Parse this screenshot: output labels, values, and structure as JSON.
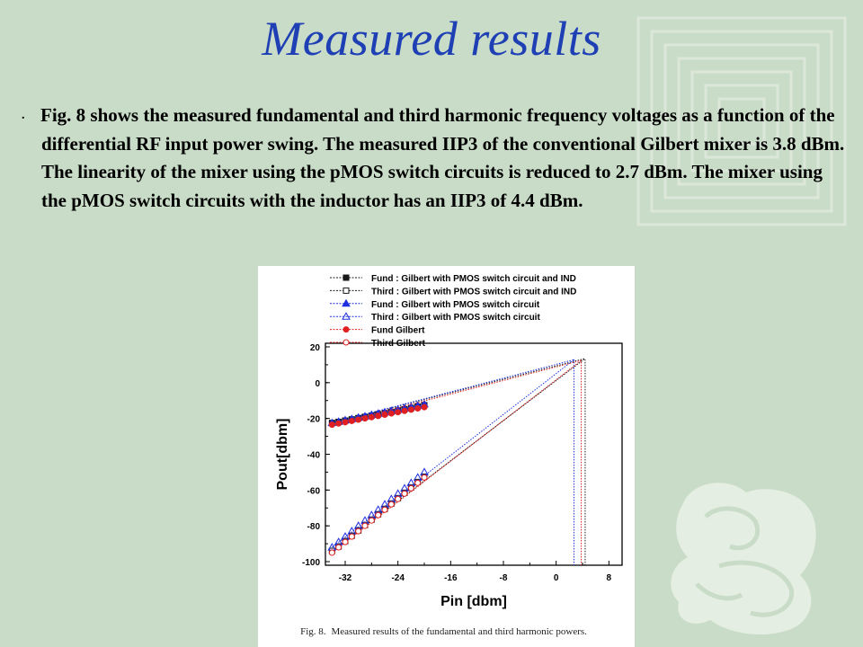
{
  "slide": {
    "title": "Measured results",
    "bullet": ".",
    "paragraph": "Fig. 8 shows the measured fundamental and third harmonic frequency voltages as a function of the differential RF input power swing. The measured IIP3 of the conventional Gilbert mixer is 3.8 dBm. The linearity of the mixer using the pMOS switch circuits is reduced to 2.7 dBm. The mixer using the pMOS switch circuits with the inductor has an IIP3 of 4.4 dBm."
  },
  "figure": {
    "caption_label": "Fig. 8.",
    "caption_text": "Measured results of the fundamental and third harmonic powers."
  },
  "colors": {
    "background": "#c9dcc8",
    "title": "#1f3fb4",
    "series_black": "#1a1a1a",
    "series_blue": "#1e2ee0",
    "series_red": "#e02020"
  },
  "chart_data": {
    "type": "line",
    "title": "",
    "xlabel": "Pin [dbm]",
    "ylabel": "Pout[dbm]",
    "xlim": [
      -35,
      10
    ],
    "ylim": [
      -102,
      22
    ],
    "xticks": [
      -32,
      -24,
      -16,
      -8,
      0,
      8
    ],
    "yticks": [
      20,
      0,
      -20,
      -40,
      -60,
      -80,
      -100
    ],
    "grid": false,
    "legend_position": "top",
    "series": [
      {
        "name": "Fund : Gilbert with PMOS switch circuit and IND",
        "color": "#1a1a1a",
        "marker": "square-filled",
        "x": [
          -34,
          -33,
          -32,
          -31,
          -30,
          -29,
          -28,
          -27,
          -26,
          -25,
          -24,
          -23,
          -22,
          -21,
          -20
        ],
        "y": [
          -22.5,
          -21.9,
          -21.2,
          -20.5,
          -19.8,
          -19.1,
          -18.4,
          -17.7,
          -17.0,
          -16.3,
          -15.6,
          -14.9,
          -14.2,
          -13.4,
          -12.6
        ],
        "extrapolation": {
          "from": [
            -34,
            -22.5
          ],
          "to": [
            4.4,
            13.5
          ]
        }
      },
      {
        "name": "Third : Gilbert with PMOS switch circuit and IND",
        "color": "#1a1a1a",
        "marker": "square-open",
        "x": [
          -34,
          -33,
          -32,
          -31,
          -30,
          -29,
          -28,
          -27,
          -26,
          -25,
          -24,
          -23,
          -22,
          -21,
          -20
        ],
        "y": [
          -94,
          -91.5,
          -88.5,
          -85.5,
          -82.5,
          -79.5,
          -76.5,
          -73.5,
          -70.5,
          -67.5,
          -64.5,
          -61.5,
          -58.5,
          -55.5,
          -52.5
        ],
        "extrapolation": {
          "from": [
            -34,
            -94
          ],
          "to": [
            4.4,
            13.5
          ]
        }
      },
      {
        "name": "Fund : Gilbert with PMOS switch circuit",
        "color": "#1e2ee0",
        "marker": "triangle-filled",
        "x": [
          -34,
          -33,
          -32,
          -31,
          -30,
          -29,
          -28,
          -27,
          -26,
          -25,
          -24,
          -23,
          -22,
          -21,
          -20
        ],
        "y": [
          -22.5,
          -21.8,
          -21.0,
          -20.3,
          -19.5,
          -18.8,
          -18.0,
          -17.3,
          -16.5,
          -15.8,
          -15.0,
          -14.3,
          -13.5,
          -12.8,
          -12.0
        ],
        "extrapolation": {
          "from": [
            -34,
            -22.5
          ],
          "to": [
            2.7,
            12.8
          ]
        }
      },
      {
        "name": "Third : Gilbert with PMOS switch circuit",
        "color": "#1e2ee0",
        "marker": "triangle-open",
        "x": [
          -34,
          -33,
          -32,
          -31,
          -30,
          -29,
          -28,
          -27,
          -26,
          -25,
          -24,
          -23,
          -22,
          -21,
          -20
        ],
        "y": [
          -92,
          -89,
          -86,
          -83,
          -80,
          -77,
          -74,
          -71,
          -68,
          -65,
          -62,
          -59,
          -56,
          -53,
          -50
        ],
        "extrapolation": {
          "from": [
            -34,
            -92
          ],
          "to": [
            2.7,
            12.8
          ]
        }
      },
      {
        "name": "Fund Gilbert",
        "color": "#e02020",
        "marker": "circle-filled",
        "x": [
          -34,
          -33,
          -32,
          -31,
          -30,
          -29,
          -28,
          -27,
          -26,
          -25,
          -24,
          -23,
          -22,
          -21,
          -20
        ],
        "y": [
          -23.5,
          -22.8,
          -22.1,
          -21.4,
          -20.7,
          -20.0,
          -19.3,
          -18.6,
          -17.9,
          -17.2,
          -16.5,
          -15.8,
          -15.1,
          -14.4,
          -13.7
        ],
        "extrapolation": {
          "from": [
            -34,
            -23.5
          ],
          "to": [
            3.8,
            12.4
          ]
        }
      },
      {
        "name": "Third Gilbert",
        "color": "#e02020",
        "marker": "circle-open",
        "x": [
          -34,
          -33,
          -32,
          -31,
          -30,
          -29,
          -28,
          -27,
          -26,
          -25,
          -24,
          -23,
          -22,
          -21,
          -20
        ],
        "y": [
          -95,
          -92,
          -89,
          -86,
          -83,
          -80,
          -77,
          -74,
          -71,
          -68,
          -65,
          -62,
          -59,
          -56,
          -53
        ],
        "extrapolation": {
          "from": [
            -34,
            -95
          ],
          "to": [
            3.8,
            12.4
          ]
        }
      }
    ],
    "iip3_markers": [
      {
        "x": 2.7,
        "color": "#1e2ee0"
      },
      {
        "x": 3.8,
        "color": "#e02020"
      },
      {
        "x": 4.4,
        "color": "#1a1a1a"
      }
    ]
  }
}
